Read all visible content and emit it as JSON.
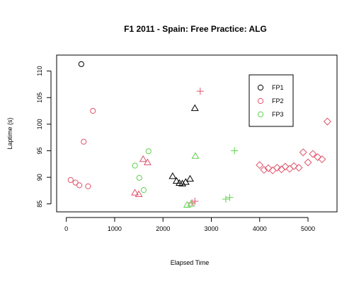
{
  "chart_data": {
    "type": "scatter",
    "title": "F1 2011 - Spain: Free Practice: ALG",
    "xlabel": "Elapsed Time",
    "ylabel": "Laptime (s)",
    "xlim": [
      -200,
      5600
    ],
    "ylim": [
      83.5,
      113
    ],
    "xticks": [
      0,
      1000,
      2000,
      3000,
      4000,
      5000
    ],
    "yticks": [
      85,
      90,
      95,
      100,
      105,
      110
    ],
    "xtick_labels": [
      "0",
      "1000",
      "2000",
      "3000",
      "4000",
      "5000"
    ],
    "ytick_labels": [
      "85",
      "90",
      "95",
      "100",
      "105",
      "110"
    ],
    "grid": false,
    "legend_position": "top-right",
    "legend": [
      {
        "label": "FP1",
        "color": "#000000",
        "symbol": "circle"
      },
      {
        "label": "FP2",
        "color": "#df536b",
        "symbol": "circle"
      },
      {
        "label": "FP3",
        "color": "#61d04f",
        "symbol": "circle"
      }
    ],
    "series": [
      {
        "name": "FP1",
        "color": "#000000",
        "points": [
          {
            "x": 310,
            "y": 111.3,
            "shape": "circle"
          },
          {
            "x": 2200,
            "y": 90.2,
            "shape": "triangle"
          },
          {
            "x": 2280,
            "y": 89.3,
            "shape": "triangle"
          },
          {
            "x": 2340,
            "y": 88.9,
            "shape": "triangle"
          },
          {
            "x": 2400,
            "y": 88.8,
            "shape": "triangle"
          },
          {
            "x": 2470,
            "y": 89.1,
            "shape": "triangle"
          },
          {
            "x": 2560,
            "y": 89.7,
            "shape": "triangle"
          },
          {
            "x": 2660,
            "y": 103.0,
            "shape": "triangle"
          }
        ]
      },
      {
        "name": "FP2",
        "color": "#df536b",
        "points": [
          {
            "x": 90,
            "y": 89.5,
            "shape": "circle"
          },
          {
            "x": 190,
            "y": 89.0,
            "shape": "circle"
          },
          {
            "x": 270,
            "y": 88.5,
            "shape": "circle"
          },
          {
            "x": 360,
            "y": 96.7,
            "shape": "circle"
          },
          {
            "x": 450,
            "y": 88.3,
            "shape": "circle"
          },
          {
            "x": 550,
            "y": 102.5,
            "shape": "circle"
          },
          {
            "x": 1420,
            "y": 87.1,
            "shape": "triangle"
          },
          {
            "x": 1500,
            "y": 86.8,
            "shape": "triangle"
          },
          {
            "x": 1590,
            "y": 93.4,
            "shape": "triangle"
          },
          {
            "x": 1680,
            "y": 92.8,
            "shape": "triangle"
          },
          {
            "x": 2600,
            "y": 85.2,
            "shape": "plus"
          },
          {
            "x": 2660,
            "y": 85.5,
            "shape": "plus"
          },
          {
            "x": 2770,
            "y": 106.2,
            "shape": "plus"
          },
          {
            "x": 4000,
            "y": 92.3,
            "shape": "diamond"
          },
          {
            "x": 4090,
            "y": 91.4,
            "shape": "diamond"
          },
          {
            "x": 4180,
            "y": 91.7,
            "shape": "diamond"
          },
          {
            "x": 4270,
            "y": 91.3,
            "shape": "diamond"
          },
          {
            "x": 4360,
            "y": 91.8,
            "shape": "diamond"
          },
          {
            "x": 4450,
            "y": 91.5,
            "shape": "diamond"
          },
          {
            "x": 4530,
            "y": 92.0,
            "shape": "diamond"
          },
          {
            "x": 4620,
            "y": 91.6,
            "shape": "diamond"
          },
          {
            "x": 4710,
            "y": 92.1,
            "shape": "diamond"
          },
          {
            "x": 4810,
            "y": 91.8,
            "shape": "diamond"
          },
          {
            "x": 4900,
            "y": 94.7,
            "shape": "diamond"
          },
          {
            "x": 5000,
            "y": 92.8,
            "shape": "diamond"
          },
          {
            "x": 5100,
            "y": 94.4,
            "shape": "diamond"
          },
          {
            "x": 5200,
            "y": 93.8,
            "shape": "diamond"
          },
          {
            "x": 5290,
            "y": 93.4,
            "shape": "diamond"
          },
          {
            "x": 5400,
            "y": 100.5,
            "shape": "diamond"
          }
        ]
      },
      {
        "name": "FP3",
        "color": "#61d04f",
        "points": [
          {
            "x": 1420,
            "y": 92.2,
            "shape": "circle"
          },
          {
            "x": 1510,
            "y": 89.9,
            "shape": "circle"
          },
          {
            "x": 1600,
            "y": 87.6,
            "shape": "circle"
          },
          {
            "x": 1700,
            "y": 94.9,
            "shape": "circle"
          },
          {
            "x": 2500,
            "y": 84.8,
            "shape": "triangle"
          },
          {
            "x": 2580,
            "y": 85.0,
            "shape": "triangle"
          },
          {
            "x": 2670,
            "y": 94.0,
            "shape": "triangle"
          },
          {
            "x": 3300,
            "y": 85.9,
            "shape": "plus"
          },
          {
            "x": 3380,
            "y": 86.2,
            "shape": "plus"
          },
          {
            "x": 3480,
            "y": 95.0,
            "shape": "plus"
          }
        ]
      }
    ]
  }
}
